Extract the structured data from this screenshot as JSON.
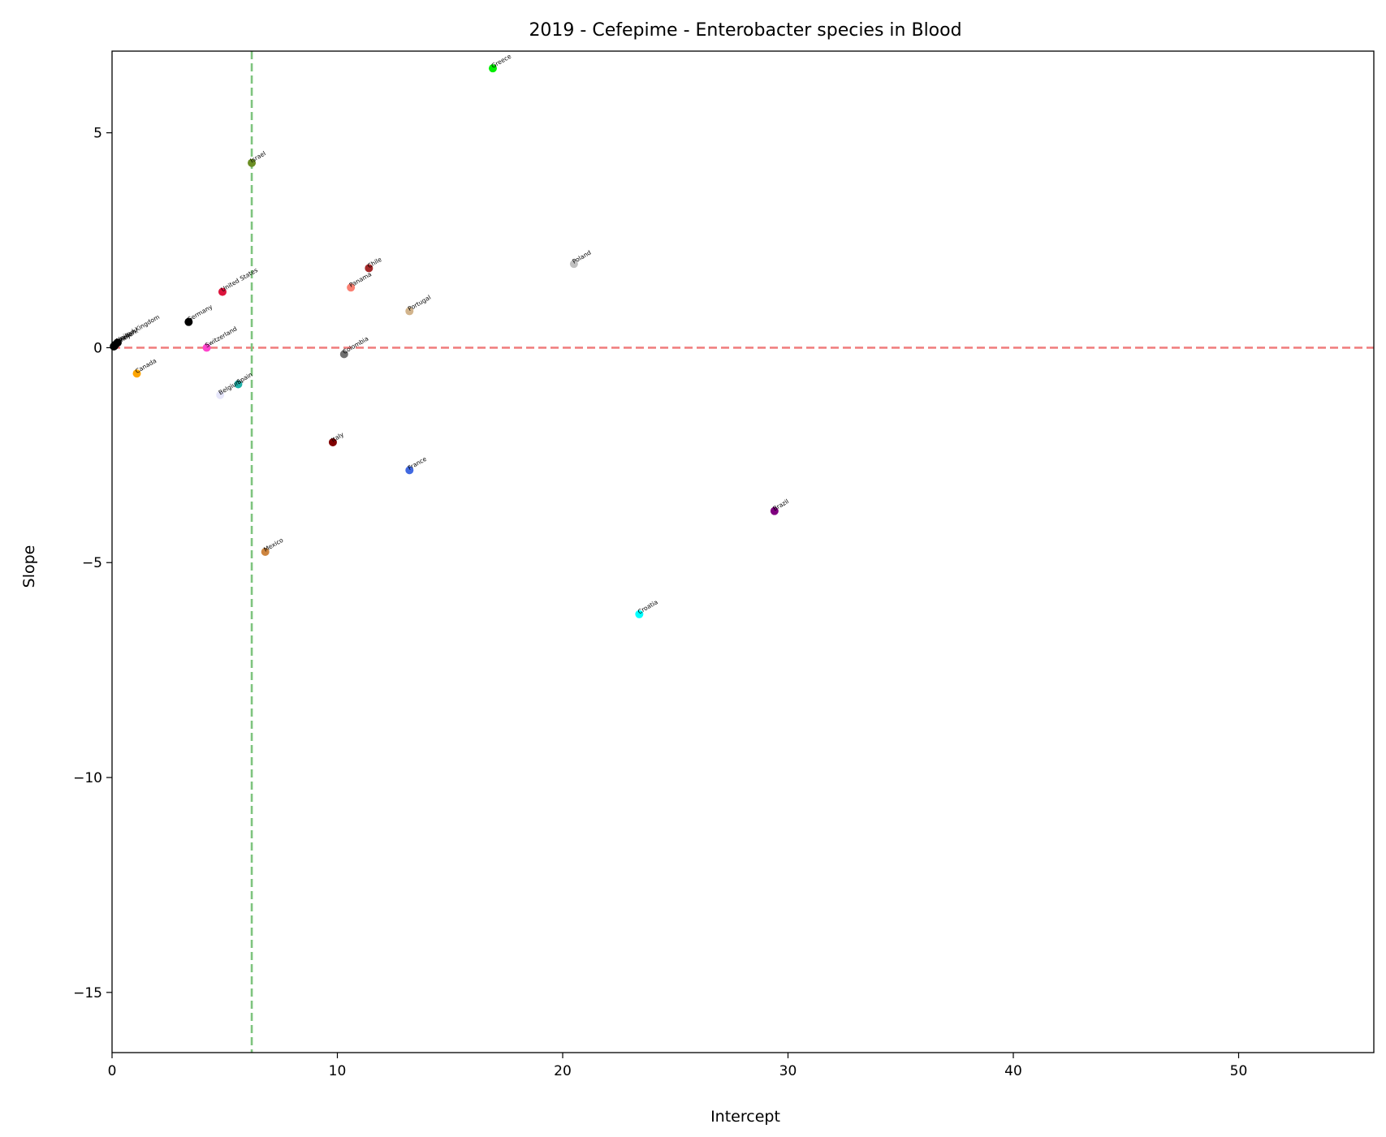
{
  "chart_data": {
    "type": "scatter",
    "title": "2019 - Cefepime - Enterobacter species in Blood",
    "xlabel": "Intercept",
    "ylabel": "Slope",
    "xlim": [
      0,
      56
    ],
    "ylim": [
      -16.4,
      6.9
    ],
    "xticks": [
      0,
      10,
      20,
      30,
      40,
      50
    ],
    "yticks": [
      5,
      0,
      -5,
      -10,
      -15
    ],
    "ytick_labels": [
      "5",
      "0",
      "−5",
      "−10",
      "−15"
    ],
    "grid": false,
    "reference_lines": [
      {
        "orientation": "horizontal",
        "value": 0,
        "color": "#f08080",
        "style": "dashed"
      },
      {
        "orientation": "vertical",
        "value": 6.2,
        "color": "#7fc47f",
        "style": "dashed"
      }
    ],
    "points": [
      {
        "label": "Greece",
        "x": 16.9,
        "y": 6.5,
        "color": "#00ee00"
      },
      {
        "label": "Israel",
        "x": 6.2,
        "y": 4.3,
        "color": "#6b8e23"
      },
      {
        "label": "Poland",
        "x": 20.5,
        "y": 1.95,
        "color": "#c0c0c0"
      },
      {
        "label": "Chile",
        "x": 11.4,
        "y": 1.85,
        "color": "#a52a2a"
      },
      {
        "label": "Panama",
        "x": 10.6,
        "y": 1.4,
        "color": "#fa8072"
      },
      {
        "label": "United States",
        "x": 4.9,
        "y": 1.3,
        "color": "#dc143c"
      },
      {
        "label": "Portugal",
        "x": 13.2,
        "y": 0.85,
        "color": "#d2b48c"
      },
      {
        "label": "Germany",
        "x": 3.4,
        "y": 0.6,
        "color": "#000000"
      },
      {
        "label": "United Kingdom",
        "x": 0.25,
        "y": 0.12,
        "color": "#000000"
      },
      {
        "label": "Sweden",
        "x": 0.15,
        "y": 0.07,
        "color": "#000000"
      },
      {
        "label": "Denmark",
        "x": 0.1,
        "y": 0.04,
        "color": "#000000"
      },
      {
        "label": "Turkey",
        "x": 0.08,
        "y": 0.03,
        "color": "#000000"
      },
      {
        "label": "Switzerland",
        "x": 4.2,
        "y": 0.0,
        "color": "#ff44cc"
      },
      {
        "label": "Colombia",
        "x": 10.3,
        "y": -0.15,
        "color": "#707070"
      },
      {
        "label": "Canada",
        "x": 1.1,
        "y": -0.6,
        "color": "#ffa500"
      },
      {
        "label": "Spain",
        "x": 5.6,
        "y": -0.85,
        "color": "#20b2aa"
      },
      {
        "label": "Belgium",
        "x": 4.8,
        "y": -1.1,
        "color": "#e6e6fa"
      },
      {
        "label": "Italy",
        "x": 9.8,
        "y": -2.2,
        "color": "#800000"
      },
      {
        "label": "France",
        "x": 13.2,
        "y": -2.85,
        "color": "#4169e1"
      },
      {
        "label": "Brazil",
        "x": 29.4,
        "y": -3.8,
        "color": "#800080"
      },
      {
        "label": "Mexico",
        "x": 6.8,
        "y": -4.75,
        "color": "#cd853f"
      },
      {
        "label": "Croatia",
        "x": 23.4,
        "y": -6.2,
        "color": "#00ffff"
      }
    ]
  }
}
